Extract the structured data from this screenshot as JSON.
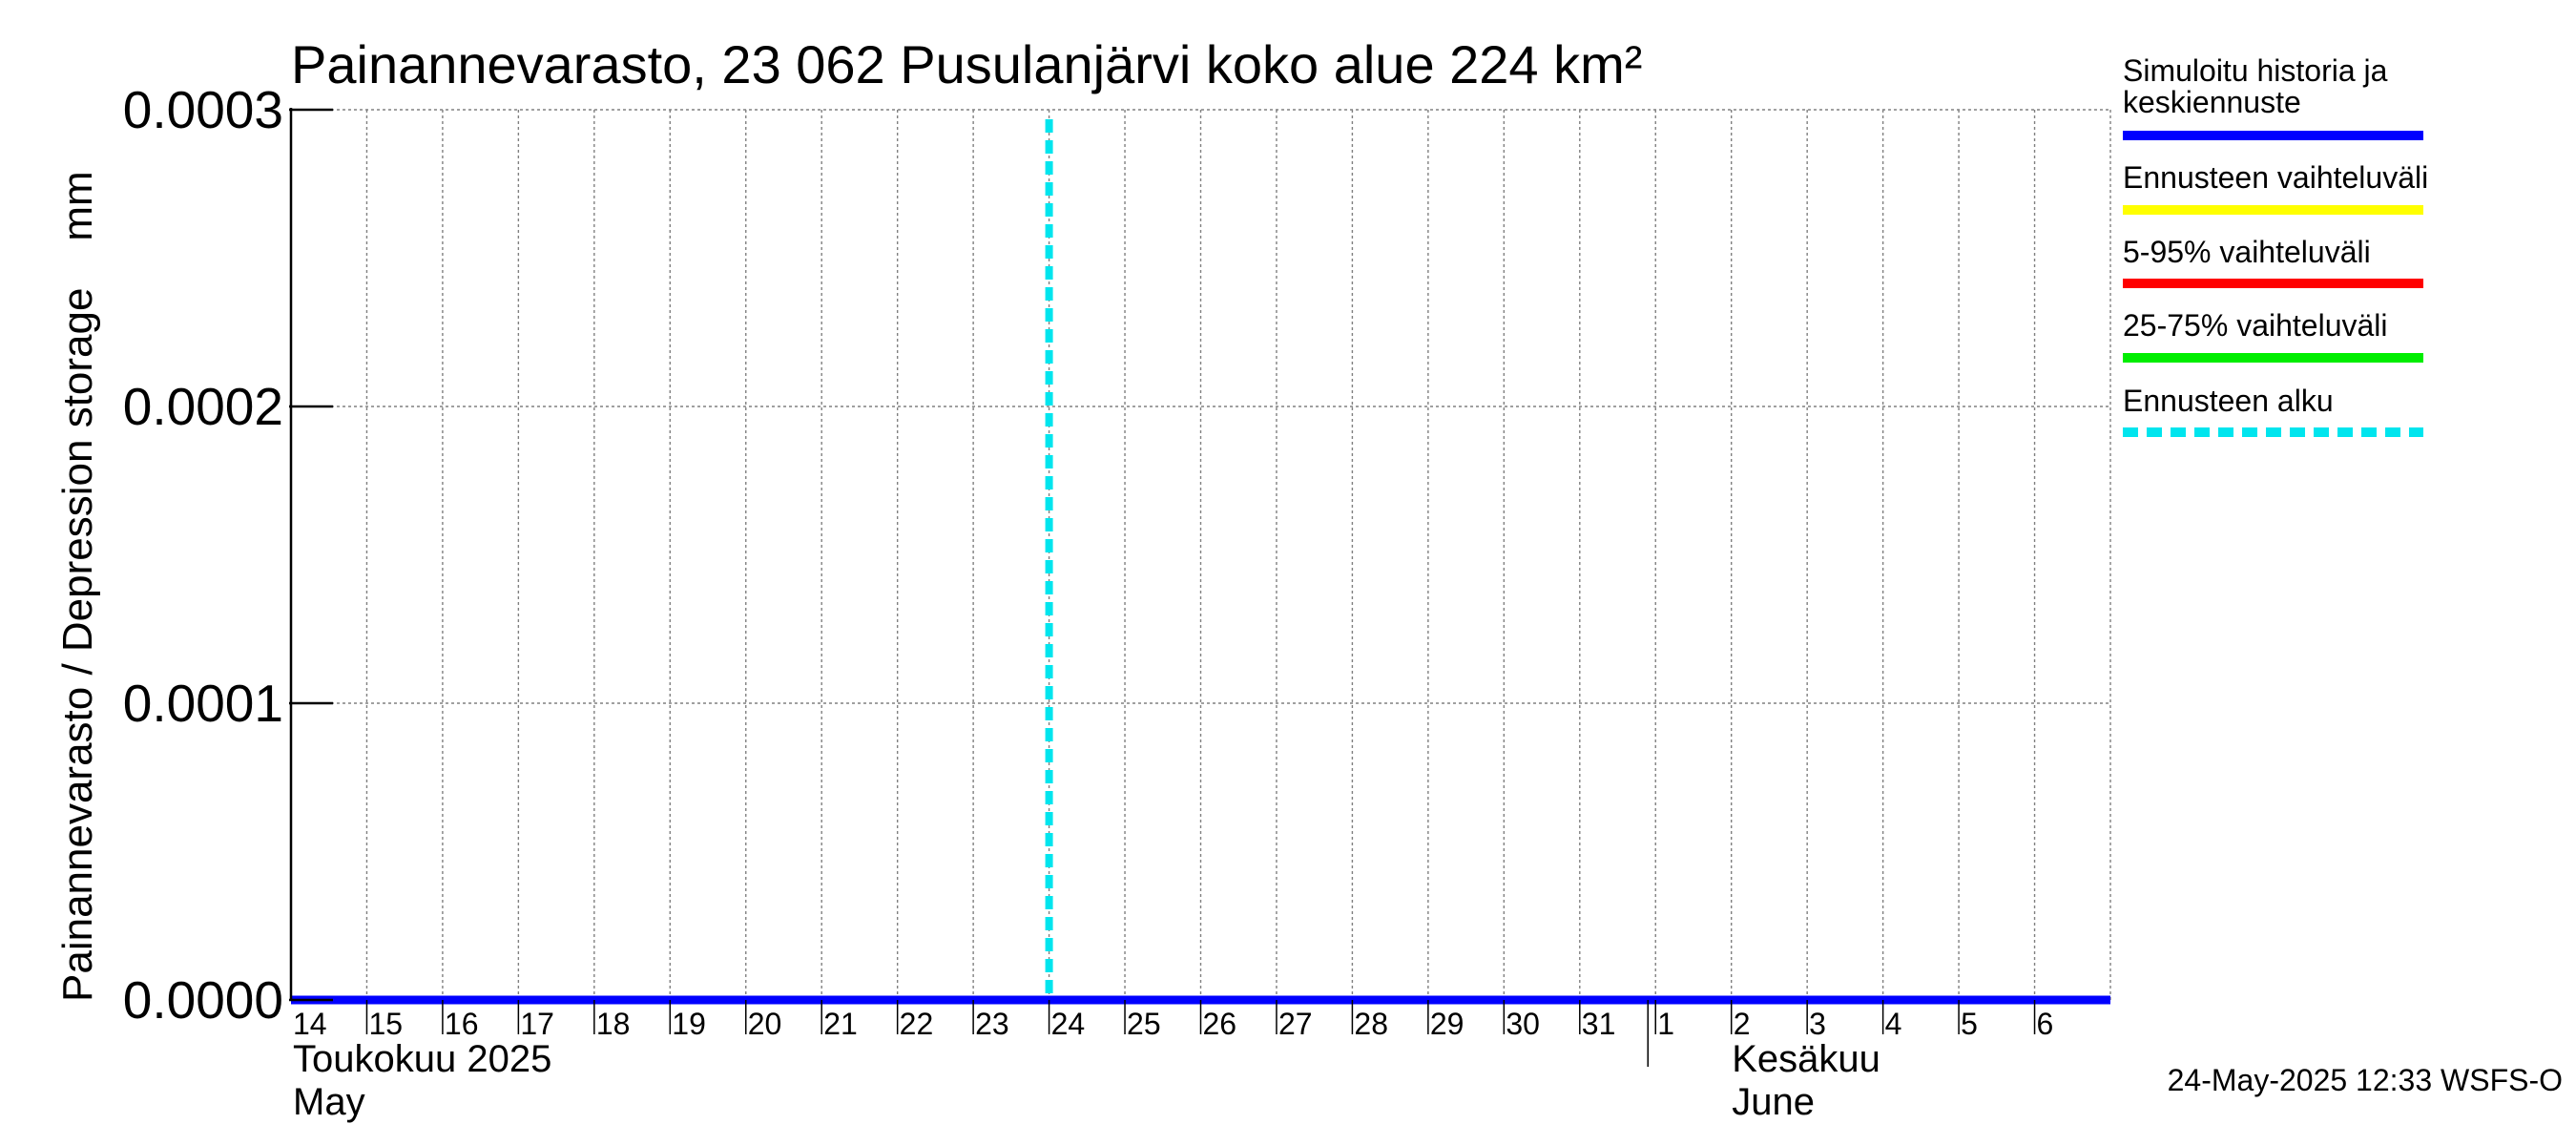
{
  "chart_data": {
    "type": "line",
    "title": "Painannevarasto, 23 062 Pusulanjärvi koko alue 224 km²",
    "ylabel": "Painannevarasto / Depression storage    mm",
    "ylim": [
      0,
      0.0003
    ],
    "yticks": [
      "0.0000",
      "0.0001",
      "0.0002",
      "0.0003"
    ],
    "ytick_values": [
      0,
      0.0001,
      0.0002,
      0.0003
    ],
    "x_days": [
      "14",
      "15",
      "16",
      "17",
      "18",
      "19",
      "20",
      "21",
      "22",
      "23",
      "24",
      "25",
      "26",
      "27",
      "28",
      "29",
      "30",
      "31",
      "1",
      "2",
      "3",
      "4",
      "5",
      "6"
    ],
    "x_range_days": [
      0,
      24
    ],
    "month_labels": [
      {
        "line1": "Toukokuu  2025",
        "line2": "May",
        "start_day_index": 0
      },
      {
        "line1": "Kesäkuu",
        "line2": "June",
        "start_day_index": 18
      }
    ],
    "series": [
      {
        "name": "Simuloitu historia ja keskiennuste",
        "color": "#0000ff",
        "x": [
          0,
          24
        ],
        "values": [
          0,
          0
        ]
      }
    ],
    "forecast_start": {
      "name": "Ennusteen alku",
      "x": 10,
      "color": "#00e5ee"
    },
    "legend": [
      {
        "label": "Simuloitu historia ja keskiennuste",
        "lines": [
          "Simuloitu historia ja",
          "keskiennuste"
        ],
        "color": "#0000ff",
        "style": "solid"
      },
      {
        "label": "Ennusteen vaihteluväli",
        "lines": [
          "Ennusteen vaihteluväli"
        ],
        "color": "#ffff00",
        "style": "solid"
      },
      {
        "label": "5-95% vaihteluväli",
        "lines": [
          "5-95% vaihteluväli"
        ],
        "color": "#ff0000",
        "style": "solid"
      },
      {
        "label": "25-75% vaihteluväli",
        "lines": [
          "25-75% vaihteluväli"
        ],
        "color": "#00ee00",
        "style": "solid"
      },
      {
        "label": "Ennusteen alku",
        "lines": [
          "Ennusteen alku"
        ],
        "color": "#00e5ee",
        "style": "dashed"
      }
    ],
    "legend_position": "right",
    "grid": true,
    "timestamp": "24-May-2025 12:33 WSFS-O"
  }
}
